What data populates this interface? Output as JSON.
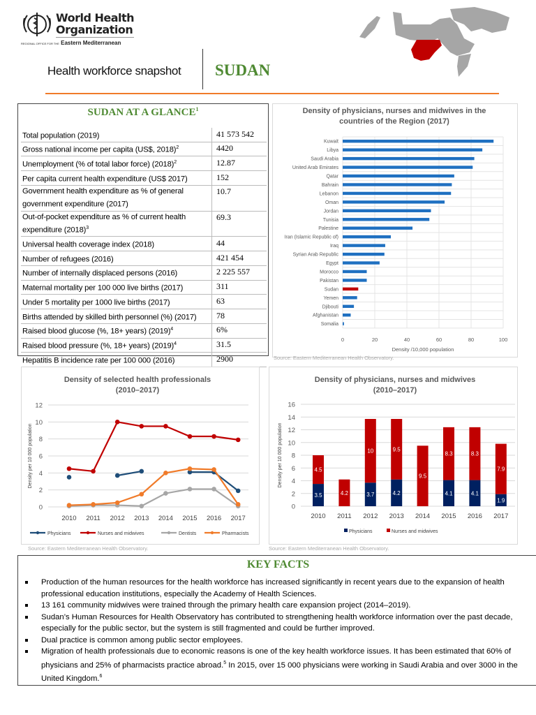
{
  "header": {
    "org_line1": "World Health",
    "org_line2": "Organization",
    "org_sub_small": "REGIONAL OFFICE FOR THE",
    "org_sub": "Eastern Mediterranean",
    "doc_title": "Health workforce snapshot",
    "country": "SUDAN",
    "colors": {
      "accent_green": "#4f8a33",
      "rule_orange": "#f07b2a",
      "map_highlight": "#c00000"
    }
  },
  "glance": {
    "title": "SUDAN AT A GLANCE",
    "title_sup": "1",
    "rows": [
      {
        "label": "Total population (2019)",
        "sup": "",
        "value": "41 573 542"
      },
      {
        "label": "Gross national income per capita (US$, 2018)",
        "sup": "2",
        "value": "4420"
      },
      {
        "label": "Unemployment (% of total labor force) (2018)",
        "sup": "2",
        "value": "12.87"
      },
      {
        "label": "Per capita current health expenditure (US$ 2017)",
        "sup": "",
        "value": "152"
      },
      {
        "label": "Government health expenditure as % of general government expenditure (2017)",
        "sup": "",
        "value": "10.7"
      },
      {
        "label": "Out-of-pocket expenditure as % of current health expenditure (2018)",
        "sup": "3",
        "value": "69.3"
      },
      {
        "label": "Universal health coverage index (2018)",
        "sup": "",
        "value": "44"
      },
      {
        "label": "Number of refugees (2016)",
        "sup": "",
        "value": "421 454"
      },
      {
        "label": "Number of internally displaced persons (2016)",
        "sup": "",
        "value": "2 225 557"
      },
      {
        "label": "Maternal mortality per 100 000 live births (2017)",
        "sup": "",
        "value": "311"
      },
      {
        "label": "Under 5 mortality per 1000 live births (2017)",
        "sup": "",
        "value": "63"
      },
      {
        "label": "Births attended by skilled birth personnel (%) (2017)",
        "sup": "",
        "value": "78"
      },
      {
        "label": "Raised blood glucose (%, 18+ years) (2019)",
        "sup": "4",
        "value": "6%"
      },
      {
        "label": "Raised blood pressure (%, 18+ years) (2019)",
        "sup": "4",
        "value": "31.5"
      },
      {
        "label": "Hepatitis B incidence rate per 100 000 (2016)",
        "sup": "",
        "value": "2900"
      }
    ]
  },
  "chart_data": [
    {
      "type": "bar",
      "orientation": "horizontal",
      "title": "Density of physicians, nurses and midwives in the countries of the Region  (2017)",
      "xlabel": "Density /10,000 population",
      "xlim": [
        0,
        100
      ],
      "xticks": [
        0,
        20,
        40,
        60,
        80,
        100
      ],
      "grid": true,
      "categories": [
        "Kuwait",
        "Libya",
        "Saudi Arabia",
        "United Arab Emirates",
        "Qatar",
        "Bahrain",
        "Lebanon",
        "Oman",
        "Jordan",
        "Tunisia",
        "Palestine",
        "Iran (Islamic Republic of)",
        "Iraq",
        "Syrian Arab Republic",
        "Egypt",
        "Morocco",
        "Pakistan",
        "Sudan",
        "Yemen",
        "Djibouti",
        "Afghanistan",
        "Somalia"
      ],
      "values": [
        94,
        87,
        82,
        81,
        69.5,
        68,
        67.5,
        63.5,
        55,
        54,
        43.5,
        30,
        26.5,
        26,
        23,
        15,
        15,
        9.7,
        9,
        7,
        5,
        0.8
      ],
      "colors": {
        "default": "#1f70c1",
        "highlight": "#c00000"
      },
      "highlight": "Sudan",
      "source": "Source: Eastern Mediterranean Health Observatory."
    },
    {
      "type": "line",
      "title": "Density of selected health professionals",
      "subtitle": "(2010–2017)",
      "ylabel": "Density per 10 000 population",
      "ylim": [
        0,
        12
      ],
      "yticks": [
        0,
        2,
        4,
        6,
        8,
        10,
        12
      ],
      "grid": true,
      "legend": "bottom",
      "x": [
        "2010",
        "2011",
        "2012",
        "2013",
        "2014",
        "2015",
        "2016",
        "2017"
      ],
      "series": [
        {
          "name": "Physicians",
          "color": "#1f4e79",
          "values": [
            3.5,
            null,
            3.7,
            4.2,
            null,
            4.1,
            4.1,
            1.9
          ]
        },
        {
          "name": "Nurses and midwives",
          "color": "#c00000",
          "values": [
            4.5,
            4.2,
            10,
            9.5,
            9.5,
            8.3,
            8.3,
            7.9
          ]
        },
        {
          "name": "Dentists",
          "color": "#a6a6a6",
          "values": [
            0.1,
            0.2,
            0.2,
            0.1,
            1.6,
            2.1,
            2.1,
            0.1
          ]
        },
        {
          "name": "Pharmacists",
          "color": "#f07b2a",
          "values": [
            0.2,
            0.3,
            0.5,
            1.5,
            4.0,
            4.5,
            4.4,
            0.3
          ]
        }
      ],
      "source": "Source: Eastern Mediterranean Health Observatory."
    },
    {
      "type": "bar",
      "stacked": true,
      "title": "Density of physicians, nurses and midwives",
      "subtitle": "(2010–2017)",
      "ylabel": "Density per 10 000 population",
      "ylim": [
        0,
        16
      ],
      "yticks": [
        0,
        2,
        4,
        6,
        8,
        10,
        12,
        14,
        16
      ],
      "grid": true,
      "legend": "bottom",
      "categories": [
        "2010",
        "2011",
        "2012",
        "2013",
        "2014",
        "2015",
        "2016",
        "2017"
      ],
      "series": [
        {
          "name": "Physicians",
          "color": "#002060",
          "values": [
            3.5,
            0,
            3.7,
            4.2,
            0,
            4.1,
            4.1,
            1.9
          ],
          "labels": [
            "3.5",
            "",
            "3.7",
            "4.2",
            "",
            "4.1",
            "4.1",
            "1.9"
          ]
        },
        {
          "name": "Nurses and midwives",
          "color": "#c00000",
          "values": [
            4.5,
            4.2,
            10,
            9.5,
            9.5,
            8.3,
            8.3,
            7.9
          ],
          "labels": [
            "4.5",
            "4.2",
            "10",
            "9.5",
            "9.5",
            "8.3",
            "8.3",
            "7.9"
          ]
        }
      ],
      "source": "Source: Eastern Mediterranean Health Observatory."
    }
  ],
  "facts": {
    "title": "KEY FACTS",
    "items": [
      {
        "text": "Production of the human resources for the health workforce has increased significantly in recent years due to the expansion of health professional education institutions, especially the Academy of Health Sciences."
      },
      {
        "text": "13 161 community midwives were trained through the primary health care expansion project (2014–2019)."
      },
      {
        "text": "Sudan’s Human Resources for Health Observatory has contributed to strengthening health workforce information over the past decade, especially for the public sector, but the system is still fragmented and could be further improved."
      },
      {
        "text": "Dual practice is common among public sector employees."
      },
      {
        "text": "Migration of health professionals due to economic reasons is one of the key health workforce issues. It has been estimated that 60% of physicians and 25% of pharmacists practice abroad.",
        "sup1": "5",
        "text2": " In 2015, over 15 000 physicians were working in Saudi Arabia and over 3000 in the United Kingdom.",
        "sup2": "6"
      }
    ]
  }
}
